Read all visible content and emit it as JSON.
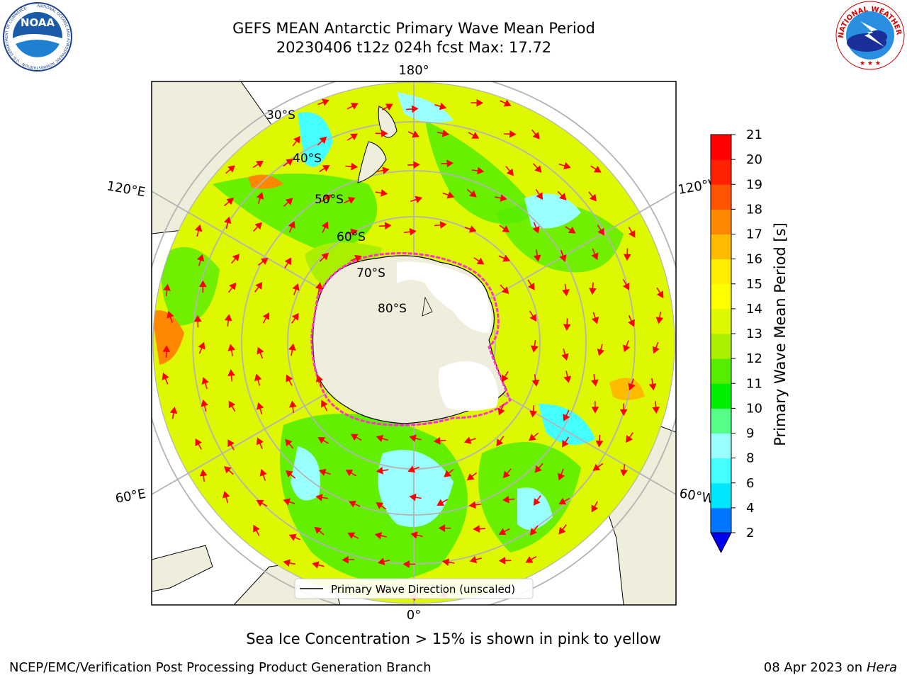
{
  "header": {
    "title_line1": "GEFS MEAN Antarctic Primary Wave Mean Period",
    "title_line2": "20230406 t12z 024h fcst   Max: 17.72"
  },
  "logos": {
    "noaa_text": "NOAA",
    "noaa_ring": "NATIONAL OCEANIC AND ATMOSPHERIC ADMINISTRATION · U.S. DEPARTMENT OF COMMERCE ·",
    "nws_ring": "NATIONAL WEATHER SERVICE"
  },
  "map": {
    "longitude_labels": {
      "top": "180°",
      "bottom": "0°",
      "upper_left": "120°E",
      "upper_right": "120°W",
      "lower_left": "60°E",
      "lower_right": "60°W"
    },
    "latitude_labels": [
      "30°S",
      "40°S",
      "50°S",
      "60°S",
      "70°S",
      "80°S"
    ],
    "legend_label": "Primary Wave Direction (unscaled)",
    "colors": {
      "ocean_fill": "#ddf800",
      "land": "#efeddc",
      "arrows": "#ff0000",
      "sea_ice_edge": "#ff33cc",
      "ice_sheet": "#ffffff",
      "grid": "#b4b4b4"
    }
  },
  "colorbar": {
    "label": "Primary Wave Mean Period [s]",
    "ticks": [
      "2",
      "4",
      "6",
      "8",
      "9",
      "10",
      "11",
      "12",
      "13",
      "14",
      "15",
      "16",
      "17",
      "18",
      "19",
      "20",
      "21"
    ],
    "colors": [
      "#0077ff",
      "#00e6ff",
      "#44ffff",
      "#99ffff",
      "#55ff88",
      "#00ee00",
      "#55ee00",
      "#aaee00",
      "#ddf800",
      "#ffff00",
      "#ffee00",
      "#ffbb00",
      "#ff8800",
      "#ff5500",
      "#ff2200",
      "#ff0000"
    ],
    "under_color": "#0000ee"
  },
  "caption": "Sea Ice Concentration > 15% is shown in pink to yellow",
  "footer": {
    "left": "NCEP/EMC/Verification Post Processing Product Generation Branch",
    "date": "08 Apr 2023 on ",
    "machine": "Hera"
  }
}
